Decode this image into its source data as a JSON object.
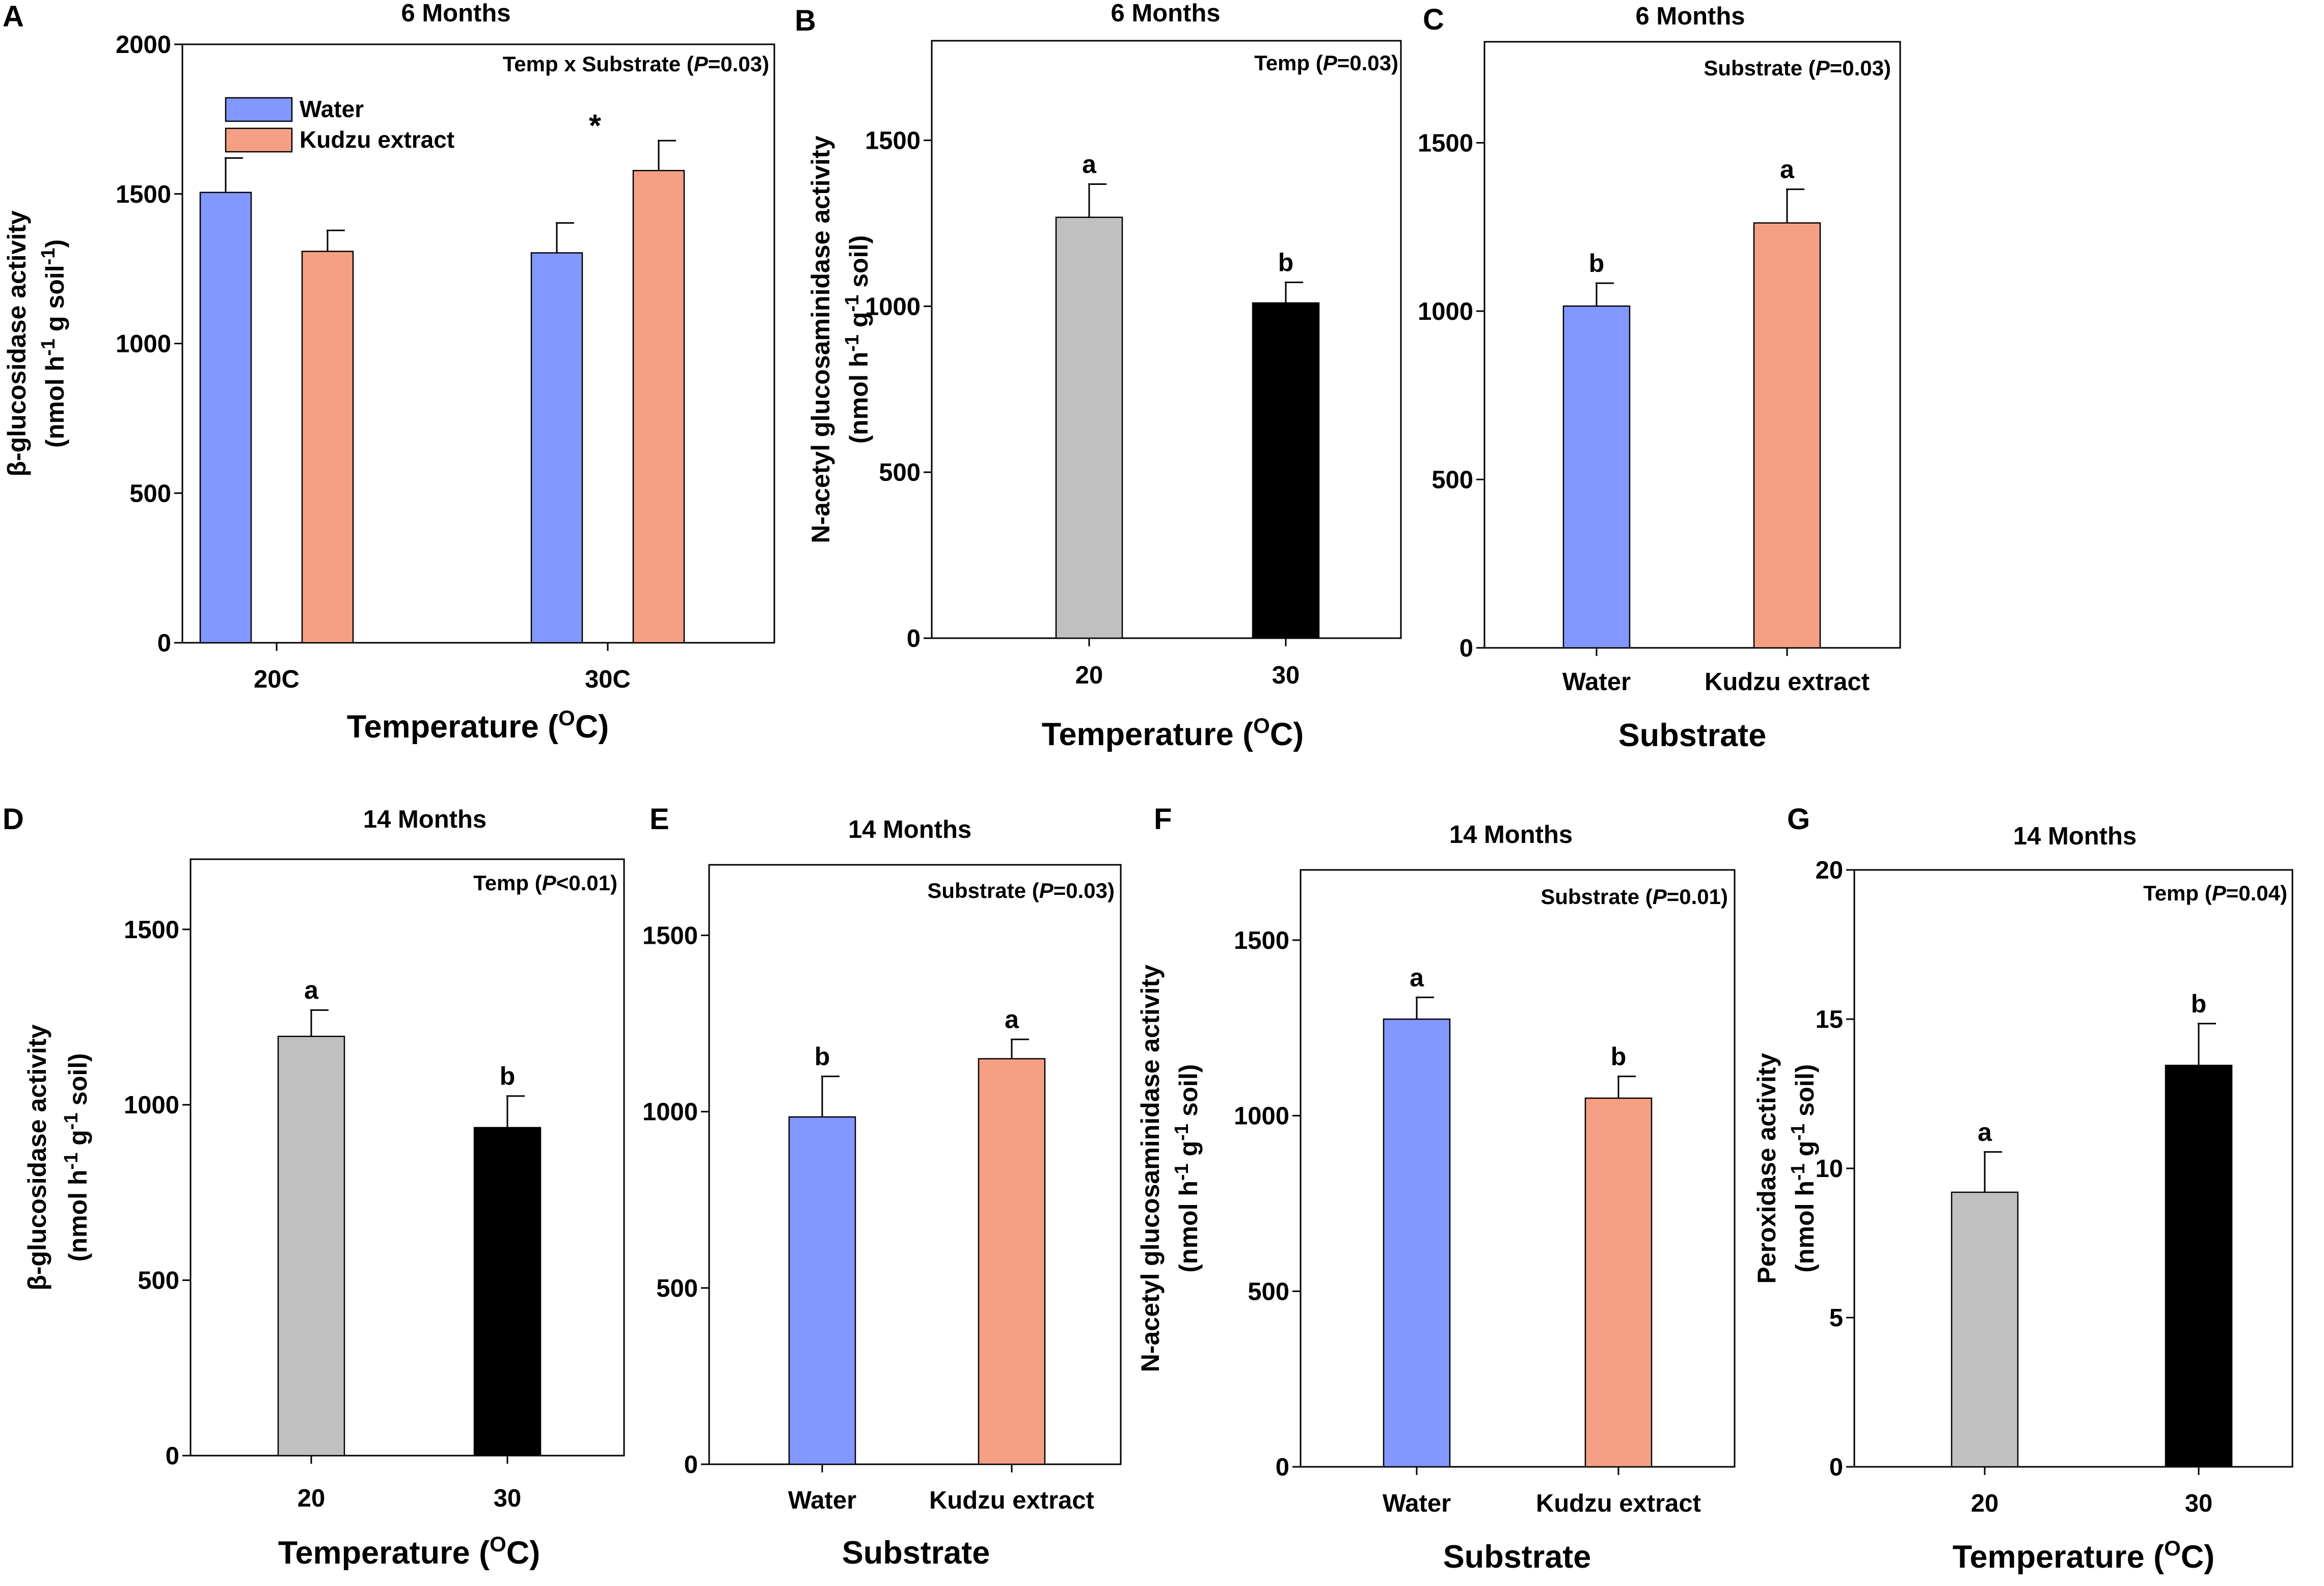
{
  "colors": {
    "water": "#8297ff",
    "kudzu": "#f5a084",
    "temp20": "#c0c0c0",
    "temp30": "#000000"
  },
  "chart_data": [
    {
      "panel": "A",
      "type": "bar",
      "title": "6 Months",
      "annotation": "Temp x Substrate (",
      "annotation_p": "P",
      "annotation_rest": "=0.03)",
      "xlabel": "Temperature (",
      "xlabel_sup": "O",
      "xlabel_end": "C)",
      "ylabel_line1": "β-glucosidase activity",
      "ylabel_line2": "(nmol h",
      "ylabel_sup1": "-1",
      "ylabel_mid": " g soil",
      "ylabel_sup2": "-1",
      "ylabel_end": ")",
      "ylim": [
        0,
        2000
      ],
      "yticks": [
        0,
        500,
        1000,
        1500,
        2000
      ],
      "categories": [
        "20C",
        "30C"
      ],
      "legend": [
        {
          "name": "Water",
          "color": "water"
        },
        {
          "name": "Kudzu extract",
          "color": "kudzu"
        }
      ],
      "bars": [
        {
          "cat": 0,
          "off": -1,
          "value": 1505,
          "err": 115,
          "color": "water",
          "label": ""
        },
        {
          "cat": 0,
          "off": 1,
          "value": 1308,
          "err": 70,
          "color": "kudzu",
          "label": ""
        },
        {
          "cat": 1,
          "off": -1,
          "value": 1303,
          "err": 100,
          "color": "water",
          "label": ""
        },
        {
          "cat": 1,
          "off": 1,
          "value": 1578,
          "err": 100,
          "color": "kudzu",
          "label": ""
        }
      ],
      "star": "*"
    },
    {
      "panel": "B",
      "type": "bar",
      "title": "6 Months",
      "annotation": "Temp (",
      "annotation_p": "P",
      "annotation_rest": "=0.03)",
      "xlabel": "Temperature (",
      "xlabel_sup": "O",
      "xlabel_end": "C)",
      "ylabel_line1": "N-acetyl glucosaminidase activity",
      "ylabel_line2": "(nmol h",
      "ylabel_sup1": "-1",
      "ylabel_mid": " g",
      "ylabel_sup2": "-1",
      "ylabel_end": " soil)",
      "ylim": [
        0,
        1800
      ],
      "yticks": [
        0,
        500,
        1000,
        1500
      ],
      "categories": [
        "20",
        "30"
      ],
      "bars": [
        {
          "cat": 0,
          "off": 0,
          "value": 1268,
          "err": 100,
          "color": "temp20",
          "label": "a"
        },
        {
          "cat": 1,
          "off": 0,
          "value": 1010,
          "err": 62,
          "color": "temp30",
          "label": "b"
        }
      ]
    },
    {
      "panel": "C",
      "type": "bar",
      "title": "6 Months",
      "annotation": "Substrate (",
      "annotation_p": "P",
      "annotation_rest": "=0.03)",
      "xlabel": "Substrate",
      "ylim": [
        0,
        1800
      ],
      "yticks": [
        0,
        500,
        1000,
        1500
      ],
      "categories": [
        "Water",
        "Kudzu extract"
      ],
      "bars": [
        {
          "cat": 0,
          "off": 0,
          "value": 1015,
          "err": 68,
          "color": "water",
          "label": "b"
        },
        {
          "cat": 1,
          "off": 0,
          "value": 1262,
          "err": 100,
          "color": "kudzu",
          "label": "a"
        }
      ]
    },
    {
      "panel": "D",
      "type": "bar",
      "title": "14 Months",
      "annotation": "Temp (",
      "annotation_p": "P",
      "annotation_rest": "<0.01)",
      "xlabel": "Temperature (",
      "xlabel_sup": "O",
      "xlabel_end": "C)",
      "ylabel_line1": "β-glucosidase activity",
      "ylabel_line2": "(nmol h",
      "ylabel_sup1": "-1",
      "ylabel_mid": " g",
      "ylabel_sup2": "-1",
      "ylabel_end": " soil)",
      "ylim": [
        0,
        1700
      ],
      "yticks": [
        0,
        500,
        1000,
        1500
      ],
      "categories": [
        "20",
        "30"
      ],
      "bars": [
        {
          "cat": 0,
          "off": 0,
          "value": 1195,
          "err": 75,
          "color": "temp20",
          "label": "a"
        },
        {
          "cat": 1,
          "off": 0,
          "value": 935,
          "err": 90,
          "color": "temp30",
          "label": "b"
        }
      ]
    },
    {
      "panel": "E",
      "type": "bar",
      "title": "14 Months",
      "annotation": "Substrate (",
      "annotation_p": "P",
      "annotation_rest": "=0.03)",
      "xlabel": "Substrate",
      "ylim": [
        0,
        1700
      ],
      "yticks": [
        0,
        500,
        1000,
        1500
      ],
      "categories": [
        "Water",
        "Kudzu extract"
      ],
      "bars": [
        {
          "cat": 0,
          "off": 0,
          "value": 985,
          "err": 115,
          "color": "water",
          "label": "b"
        },
        {
          "cat": 1,
          "off": 0,
          "value": 1150,
          "err": 55,
          "color": "kudzu",
          "label": "a"
        }
      ]
    },
    {
      "panel": "F",
      "type": "bar",
      "title": "14 Months",
      "annotation": "Substrate (",
      "annotation_p": "P",
      "annotation_rest": "=0.01)",
      "xlabel": "Substrate",
      "ylabel_line1": "N-acetyl glucosaminidase activity",
      "ylabel_line2": "(nmol h",
      "ylabel_sup1": "-1",
      "ylabel_mid": " g",
      "ylabel_sup2": "-1",
      "ylabel_end": " soil)",
      "ylim": [
        0,
        1700
      ],
      "yticks": [
        0,
        500,
        1000,
        1500
      ],
      "categories": [
        "Water",
        "Kudzu extract"
      ],
      "bars": [
        {
          "cat": 0,
          "off": 0,
          "value": 1275,
          "err": 62,
          "color": "water",
          "label": "a"
        },
        {
          "cat": 1,
          "off": 0,
          "value": 1050,
          "err": 62,
          "color": "kudzu",
          "label": "b"
        }
      ]
    },
    {
      "panel": "G",
      "type": "bar",
      "title": "14 Months",
      "annotation": "Temp (",
      "annotation_p": "P",
      "annotation_rest": "=0.04)",
      "xlabel": "Temperature (",
      "xlabel_sup": "O",
      "xlabel_end": "C)",
      "ylabel_line1": "Peroxidase activity",
      "ylabel_line2": "(nmol h",
      "ylabel_sup1": "-1",
      "ylabel_mid": " g",
      "ylabel_sup2": "-1",
      "ylabel_end": " soil)",
      "ylim": [
        0,
        20
      ],
      "yticks": [
        0,
        5,
        10,
        15,
        20
      ],
      "categories": [
        "20",
        "30"
      ],
      "bars": [
        {
          "cat": 0,
          "off": 0,
          "value": 9.2,
          "err": 1.35,
          "color": "temp20",
          "label": "a"
        },
        {
          "cat": 1,
          "off": 0,
          "value": 13.45,
          "err": 1.4,
          "color": "temp30",
          "label": "b"
        }
      ]
    }
  ]
}
